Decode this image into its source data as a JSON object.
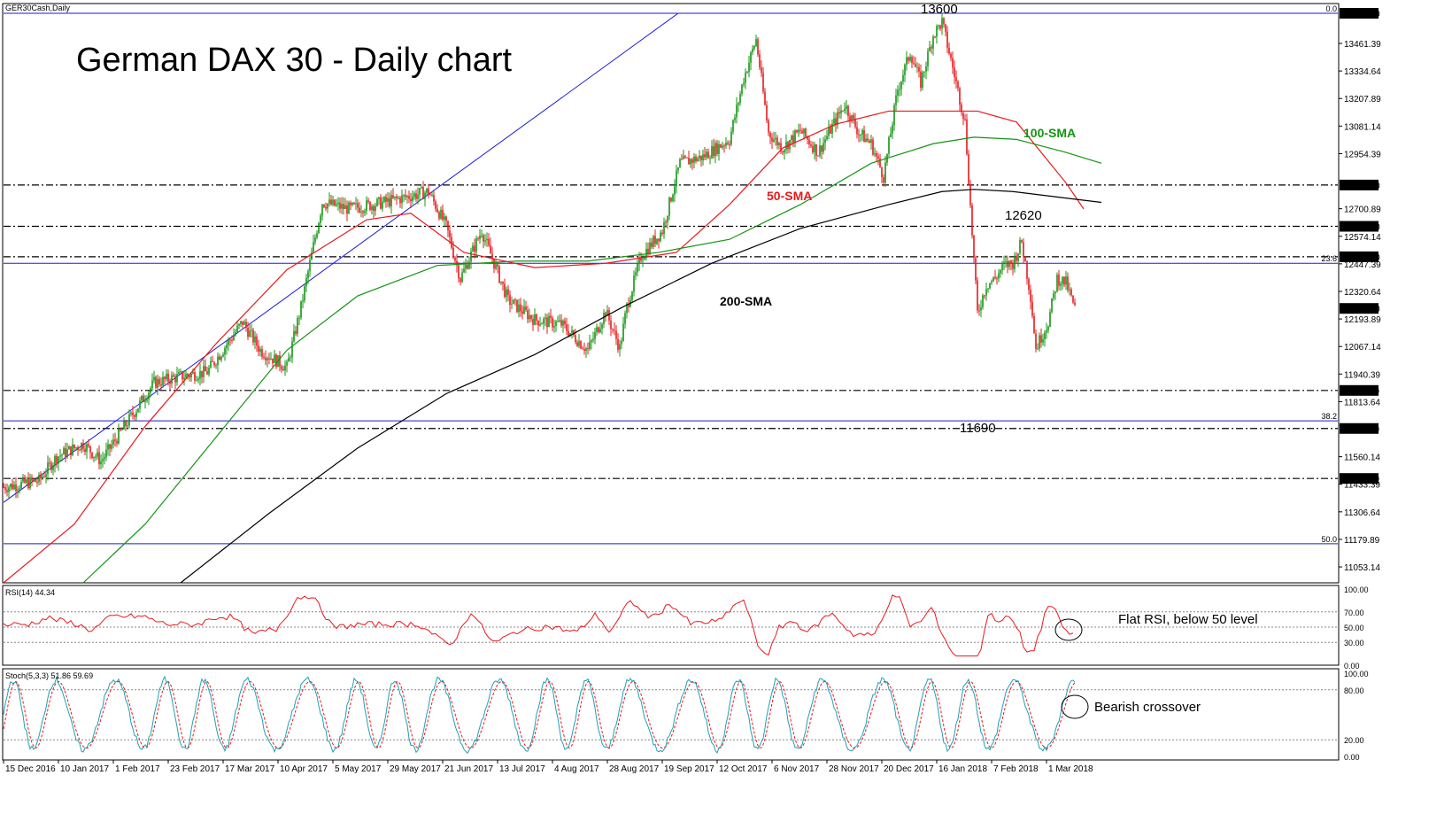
{
  "symbol_label": "GER30Cash,Daily",
  "chart_data": {
    "type": "candlestick",
    "title": "German DAX 30 - Daily chart",
    "price_axis": {
      "range": [
        10980,
        13620
      ],
      "tick_labels": [
        "13461.39",
        "13334.64",
        "13207.89",
        "13081.14",
        "12954.39",
        "12700.89",
        "12574.14",
        "12447.39",
        "12320.64",
        "12193.89",
        "12067.14",
        "11940.39",
        "11813.64",
        "11560.14",
        "11433.39",
        "11306.64",
        "11179.89",
        "11053.14"
      ],
      "tick_values": [
        13461.39,
        13334.64,
        13207.89,
        13081.14,
        12954.39,
        12700.89,
        12574.14,
        12447.39,
        12320.64,
        12193.89,
        12067.14,
        11940.39,
        11813.64,
        11560.14,
        11433.39,
        11306.64,
        11179.89,
        11053.14
      ]
    },
    "price_tags": [
      {
        "label": "13600.00",
        "value": 13600
      },
      {
        "label": "12810.00",
        "value": 12810
      },
      {
        "label": "12620.00",
        "value": 12620
      },
      {
        "label": "12480.00",
        "value": 12480
      },
      {
        "label": "12242.30",
        "value": 12242.3
      },
      {
        "label": "11865.00",
        "value": 11865
      },
      {
        "label": "11690.00",
        "value": 11690
      },
      {
        "label": "11460.00",
        "value": 11460
      }
    ],
    "horizontal_levels": [
      12810,
      12620,
      12480,
      11865,
      11690,
      11460
    ],
    "fibonacci": [
      {
        "label": "0.0",
        "value": 13600
      },
      {
        "label": "23.6",
        "value": 12450
      },
      {
        "label": "38.2",
        "value": 11725
      },
      {
        "label": "50.0",
        "value": 11160
      }
    ],
    "trendline": {
      "from": [
        "15 Dec 2016",
        11350
      ],
      "to": [
        "25 Sep 2017",
        13600
      ]
    },
    "annotations": [
      {
        "text": "13600",
        "value": 13600,
        "date": "18 Jan 2018"
      },
      {
        "text": "12620",
        "value": 12620,
        "date": "22 Feb 2018"
      },
      {
        "text": "11690",
        "value": 11690,
        "date": "06 Feb 2018"
      }
    ],
    "moving_averages": [
      {
        "name": "50-SMA",
        "color": "#e8191c",
        "points": [
          [
            0,
            10980
          ],
          [
            40,
            11250
          ],
          [
            80,
            11700
          ],
          [
            120,
            12080
          ],
          [
            160,
            12420
          ],
          [
            205,
            12650
          ],
          [
            230,
            12680
          ],
          [
            260,
            12500
          ],
          [
            300,
            12430
          ],
          [
            340,
            12450
          ],
          [
            380,
            12500
          ],
          [
            410,
            12720
          ],
          [
            440,
            12980
          ],
          [
            470,
            13090
          ],
          [
            500,
            13150
          ],
          [
            530,
            13150
          ],
          [
            550,
            13150
          ],
          [
            572,
            13100
          ],
          [
            590,
            12920
          ],
          [
            600,
            12820
          ],
          [
            610,
            12700
          ]
        ]
      },
      {
        "name": "100-SMA",
        "color": "#139413",
        "points": [
          [
            45,
            10980
          ],
          [
            80,
            11250
          ],
          [
            120,
            11650
          ],
          [
            160,
            12050
          ],
          [
            200,
            12300
          ],
          [
            245,
            12440
          ],
          [
            290,
            12460
          ],
          [
            330,
            12460
          ],
          [
            370,
            12500
          ],
          [
            410,
            12560
          ],
          [
            450,
            12720
          ],
          [
            490,
            12910
          ],
          [
            525,
            13000
          ],
          [
            548,
            13030
          ],
          [
            572,
            13020
          ],
          [
            600,
            12960
          ],
          [
            620,
            12910
          ]
        ]
      },
      {
        "name": "200-SMA",
        "color": "#000000",
        "points": [
          [
            100,
            10980
          ],
          [
            150,
            11300
          ],
          [
            200,
            11600
          ],
          [
            250,
            11850
          ],
          [
            300,
            12030
          ],
          [
            350,
            12250
          ],
          [
            400,
            12450
          ],
          [
            450,
            12610
          ],
          [
            500,
            12720
          ],
          [
            530,
            12780
          ],
          [
            548,
            12790
          ],
          [
            570,
            12780
          ],
          [
            600,
            12750
          ],
          [
            620,
            12730
          ]
        ]
      }
    ]
  },
  "x_axis_labels": [
    "15 Dec 2016",
    "10 Jan 2017",
    "1 Feb 2017",
    "23 Feb 2017",
    "17 Mar 2017",
    "10 Apr 2017",
    "5 May 2017",
    "29 May 2017",
    "21 Jun 2017",
    "13 Jul 2017",
    "4 Aug 2017",
    "28 Aug 2017",
    "19 Sep 2017",
    "12 Oct 2017",
    "6 Nov 2017",
    "28 Nov 2017",
    "20 Dec 2017",
    "16 Jan 2018",
    "7 Feb 2018",
    "1 Mar 2018"
  ],
  "labels": {
    "sma50": "50-SMA",
    "sma100": "100-SMA",
    "sma200": "200-SMA",
    "peak": "13600",
    "mid": "12620",
    "low": "11690"
  },
  "rsi": {
    "header": "RSI(14) 44.34",
    "axis_labels": [
      "100.00",
      "70.00",
      "50.00",
      "30.00",
      "0.00"
    ],
    "levels": [
      70,
      50,
      30
    ],
    "note": "Flat RSI, below 50 level",
    "color": "#e8191c"
  },
  "stoch": {
    "header": "Stoch(5,3,3) 51.86 59.69",
    "axis_labels": [
      "100.00",
      "80.00",
      "20.00",
      "0.00"
    ],
    "levels": [
      80,
      20
    ],
    "note": "Bearish crossover",
    "main_color": "#1fa0b5",
    "signal_color": "#e8191c"
  }
}
